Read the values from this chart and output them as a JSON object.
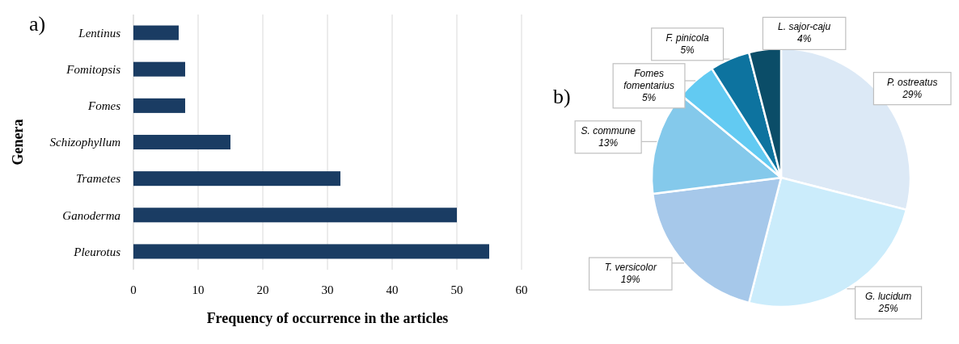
{
  "chart_data": [
    {
      "type": "bar",
      "orientation": "horizontal",
      "ylabel": "Genera",
      "xlabel": "Frequency of occurrence in the articles",
      "categories": [
        "Lentinus",
        "Fomitopsis",
        "Fomes",
        "Schizophyllum",
        "Trametes",
        "Ganoderma",
        "Pleurotus"
      ],
      "values": [
        7,
        8,
        8,
        15,
        32,
        50,
        55
      ],
      "color": "#1a3c63",
      "xlim": [
        0,
        60
      ],
      "xticks": [
        0,
        10,
        20,
        30,
        40,
        50,
        60
      ],
      "grid": "x",
      "annotations": [
        "a)"
      ]
    },
    {
      "type": "pie",
      "categories": [
        "P. ostreatus",
        "G. lucidum",
        "T. versicolor",
        "S. commune",
        "Fomes fomentarius",
        "F. pinicola",
        "L. sajor-caju"
      ],
      "values": [
        29,
        25,
        19,
        13,
        5,
        5,
        4
      ],
      "colors": [
        "#dce9f6",
        "#cbecfb",
        "#a6c8ea",
        "#84c9eb",
        "#62caf2",
        "#0d739f",
        "#0b4d68"
      ],
      "value_labels": [
        "29%",
        "25%",
        "19%",
        "13%",
        "5%",
        "5%",
        "4%"
      ],
      "annotations": [
        "b)"
      ]
    }
  ]
}
